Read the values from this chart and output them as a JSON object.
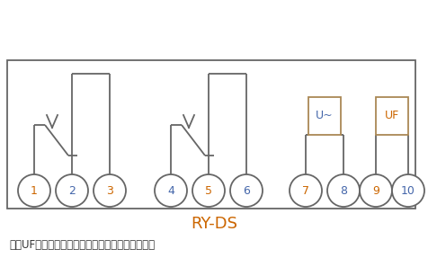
{
  "title": "RY-DS",
  "note": "注：UF为继电器辅助电源，使用时必需长期带电。",
  "title_color": "#cc6600",
  "note_color": "#333333",
  "border_color": "#666666",
  "line_color": "#666666",
  "circle_color": "#666666",
  "number_color_odd": "#cc6600",
  "number_color_even": "#4466aa",
  "numbers": [
    1,
    2,
    3,
    4,
    5,
    6,
    7,
    8,
    9,
    10
  ],
  "box_border_color": "#aa8855",
  "Utilde_label": "U~",
  "UF_label": "UF",
  "Utilde_color": "#4466aa",
  "UF_color": "#cc6600"
}
